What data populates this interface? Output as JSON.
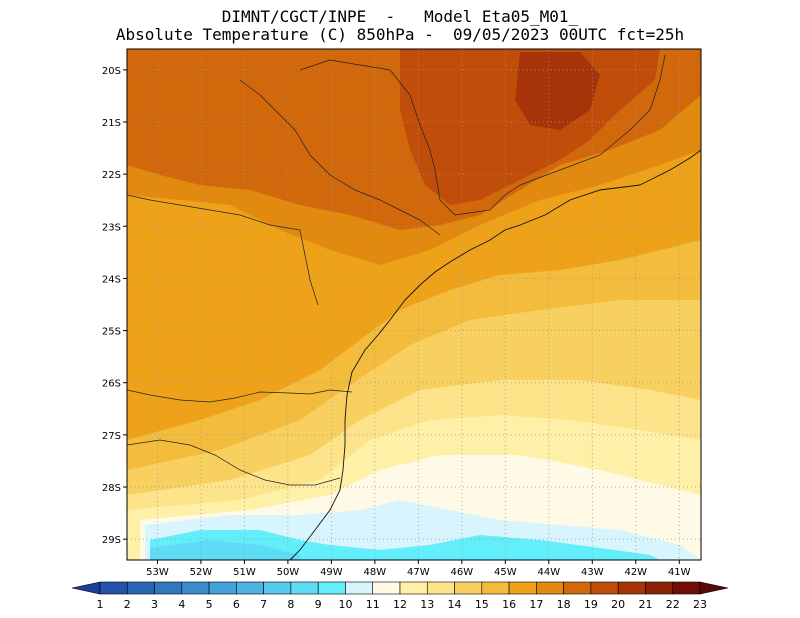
{
  "header": {
    "line1": "DIMNT/CGCT/INPE  -   Model Eta05_M01_",
    "line2": "Absolute Temperature (C) 850hPa -  09/05/2023 00UTC fct=25h"
  },
  "map": {
    "lat_labels": [
      "20S",
      "21S",
      "22S",
      "23S",
      "24S",
      "25S",
      "26S",
      "27S",
      "28S",
      "29S"
    ],
    "lon_labels": [
      "53W",
      "52W",
      "51W",
      "50W",
      "49W",
      "48W",
      "47W",
      "46W",
      "45W",
      "44W",
      "43W",
      "42W",
      "41W"
    ],
    "lat_range": [
      -29.4,
      -19.6
    ],
    "lon_range": [
      -53.7,
      -40.5
    ],
    "grid": "dotted"
  },
  "colorbar": {
    "labels": [
      "1",
      "2",
      "3",
      "4",
      "5",
      "6",
      "7",
      "8",
      "9",
      "10",
      "11",
      "12",
      "13",
      "14",
      "15",
      "16",
      "17",
      "18",
      "19",
      "20",
      "21",
      "22",
      "23"
    ],
    "colors": [
      "#1c3f9c",
      "#2553a8",
      "#2a66b4",
      "#3278bf",
      "#3a8ccc",
      "#44a0d8",
      "#4db4e2",
      "#55c8ec",
      "#5edcf4",
      "#63eefc",
      "#d8f4fc",
      "#fffae6",
      "#fff0a8",
      "#fde48a",
      "#f8d060",
      "#f4bc3c",
      "#eea21a",
      "#e28a10",
      "#d2680c",
      "#c04e0a",
      "#a63408",
      "#8a2006",
      "#700e06"
    ],
    "under_color": "#1c3f9c",
    "over_color": "#5a0a06"
  },
  "field": {
    "background": "#eea21a",
    "regions": [
      {
        "name": "warm-19",
        "color": "#d2680c"
      },
      {
        "name": "warm-18",
        "color": "#e28a10"
      },
      {
        "name": "hot-20",
        "color": "#c04e0a"
      },
      {
        "name": "hot-21",
        "color": "#a63408"
      },
      {
        "name": "mild-16",
        "color": "#f4bc3c"
      },
      {
        "name": "mild-15",
        "color": "#f8d060"
      },
      {
        "name": "cool-14",
        "color": "#fde48a"
      },
      {
        "name": "cool-13",
        "color": "#fff0a8"
      },
      {
        "name": "cool-12",
        "color": "#fffae6"
      },
      {
        "name": "cold-11",
        "color": "#d8f4fc"
      },
      {
        "name": "cold-10",
        "color": "#63eefc"
      },
      {
        "name": "cold-9",
        "color": "#5edcf4"
      }
    ]
  }
}
